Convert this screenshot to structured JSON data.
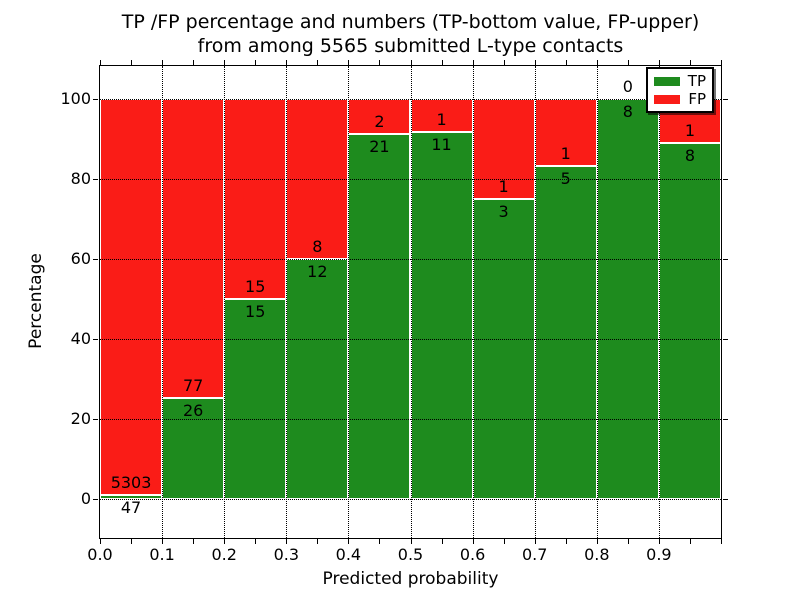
{
  "title": {
    "line1": "TP /FP percentage and numbers (TP-bottom value, FP-upper)",
    "line2": "from among 5565 submitted L-type contacts"
  },
  "axes": {
    "xlabel": "Predicted probability",
    "ylabel": "Percentage",
    "x_tick_labels": [
      "0.0",
      "0.1",
      "0.2",
      "0.3",
      "0.4",
      "0.5",
      "0.6",
      "0.7",
      "0.8",
      "0.9"
    ],
    "y_tick_labels": [
      "0",
      "20",
      "40",
      "60",
      "80",
      "100"
    ]
  },
  "legend": {
    "items": [
      {
        "label": "TP",
        "color": "#1e8b1e"
      },
      {
        "label": "FP",
        "color": "#fa1c17"
      }
    ]
  },
  "chart_data": {
    "type": "bar",
    "stacked": true,
    "title": "TP /FP percentage and numbers (TP-bottom value, FP-upper) from among 5565 submitted L-type contacts",
    "xlabel": "Predicted probability",
    "ylabel": "Percentage",
    "xlim": [
      0.0,
      1.0
    ],
    "ylim": [
      -10,
      108.5
    ],
    "grid": true,
    "legend_position": "upper right",
    "total_contacts": 5565,
    "bin_edges": [
      0.0,
      0.1,
      0.2,
      0.3,
      0.4,
      0.5,
      0.6,
      0.7,
      0.8,
      0.9,
      1.0
    ],
    "series": [
      {
        "name": "TP",
        "color": "#1e8b1e",
        "counts": [
          47,
          26,
          15,
          12,
          21,
          11,
          3,
          5,
          8,
          8
        ]
      },
      {
        "name": "FP",
        "color": "#fa1c17",
        "counts": [
          5303,
          77,
          15,
          8,
          2,
          1,
          1,
          1,
          0,
          1
        ]
      }
    ],
    "tp_percent": [
      0.88,
      25.24,
      50.0,
      60.0,
      91.3,
      91.67,
      75.0,
      83.33,
      100.0,
      88.89
    ]
  },
  "colors": {
    "tp": "#1e8b1e",
    "fp": "#fa1c17",
    "grid": "#000000",
    "text": "#000000",
    "background": "#ffffff"
  }
}
